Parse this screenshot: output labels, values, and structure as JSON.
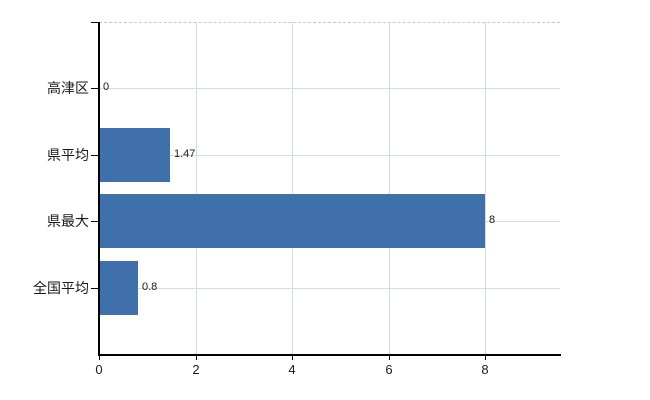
{
  "chart_data": {
    "type": "bar",
    "orientation": "horizontal",
    "title": "",
    "xlabel": "",
    "ylabel": "",
    "categories": [
      "高津区",
      "県平均",
      "県最大",
      "全国平均"
    ],
    "values": [
      0,
      1.47,
      8,
      0.8
    ],
    "value_labels": [
      "0",
      "1.47",
      "8",
      "0.8"
    ],
    "x_ticks": [
      0,
      2,
      4,
      6,
      8
    ],
    "x_tick_labels": [
      "0",
      "2",
      "4",
      "6",
      "8"
    ],
    "xlim": [
      0,
      9.55
    ],
    "grid": true,
    "legend": false,
    "colors": {
      "bar": "#3f70ac",
      "grid": "#d6dcd6",
      "plot_top_dash": "#c9c9c9",
      "axis": "#000000",
      "text": "#1a1a1a",
      "background": "#ffffff"
    }
  }
}
